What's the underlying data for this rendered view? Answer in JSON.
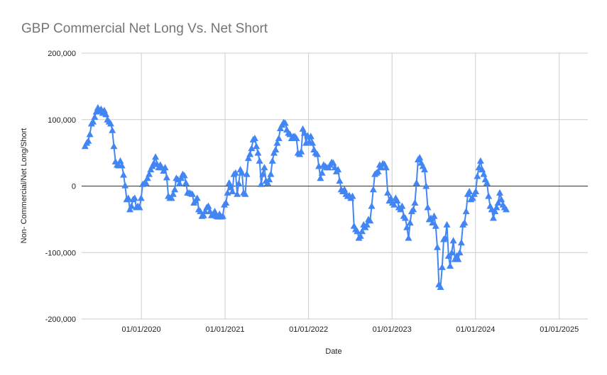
{
  "chart_data": {
    "type": "line",
    "title": "GBP Commercial Net Long Vs. Net Short",
    "xlabel": "Date",
    "ylabel": "Non- Commercial/Net Long/Short",
    "y_ticks": [
      "200,000",
      "100,000",
      "0",
      "-100,000",
      "-200,000"
    ],
    "x_ticks": [
      "01/01/2020",
      "01/01/2021",
      "01/01/2022",
      "01/01/2023",
      "01/01/2024",
      "01/01/2025"
    ],
    "xlim": [
      "2019-04-15",
      "2025-05-06"
    ],
    "ylim": [
      -200000,
      200000
    ],
    "grid": true,
    "marker": "triangle",
    "color": "#4285f4",
    "series": [
      {
        "points": [
          [
            "2019-04-30",
            60000
          ],
          [
            "2019-05-07",
            65000
          ],
          [
            "2019-05-14",
            68000
          ],
          [
            "2019-05-21",
            78000
          ],
          [
            "2019-05-28",
            94000
          ],
          [
            "2019-06-04",
            97000
          ],
          [
            "2019-06-11",
            104000
          ],
          [
            "2019-06-18",
            112000
          ],
          [
            "2019-06-25",
            118000
          ],
          [
            "2019-07-02",
            113000
          ],
          [
            "2019-07-09",
            116000
          ],
          [
            "2019-07-16",
            110000
          ],
          [
            "2019-07-23",
            114000
          ],
          [
            "2019-07-30",
            108000
          ],
          [
            "2019-08-06",
            100000
          ],
          [
            "2019-08-13",
            97000
          ],
          [
            "2019-08-20",
            94000
          ],
          [
            "2019-08-27",
            84000
          ],
          [
            "2019-09-03",
            60000
          ],
          [
            "2019-09-10",
            37000
          ],
          [
            "2019-09-17",
            32000
          ],
          [
            "2019-09-24",
            31000
          ],
          [
            "2019-10-01",
            38000
          ],
          [
            "2019-10-08",
            31000
          ],
          [
            "2019-10-15",
            17000
          ],
          [
            "2019-10-22",
            1000
          ],
          [
            "2019-10-29",
            -20000
          ],
          [
            "2019-11-05",
            -18000
          ],
          [
            "2019-11-12",
            -35000
          ],
          [
            "2019-11-19",
            -30000
          ],
          [
            "2019-11-26",
            -20000
          ],
          [
            "2019-12-03",
            -18000
          ],
          [
            "2019-12-10",
            -32000
          ],
          [
            "2019-12-17",
            -30000
          ],
          [
            "2019-12-24",
            -32000
          ],
          [
            "2019-12-31",
            -18000
          ],
          [
            "2020-01-07",
            3000
          ],
          [
            "2020-01-14",
            4000
          ],
          [
            "2020-01-21",
            5000
          ],
          [
            "2020-01-28",
            12000
          ],
          [
            "2020-02-04",
            18000
          ],
          [
            "2020-02-11",
            25000
          ],
          [
            "2020-02-18",
            30000
          ],
          [
            "2020-02-25",
            35000
          ],
          [
            "2020-03-03",
            44000
          ],
          [
            "2020-03-10",
            33000
          ],
          [
            "2020-03-17",
            28000
          ],
          [
            "2020-03-24",
            32000
          ],
          [
            "2020-03-31",
            28000
          ],
          [
            "2020-04-07",
            23000
          ],
          [
            "2020-04-14",
            28000
          ],
          [
            "2020-04-21",
            13000
          ],
          [
            "2020-04-28",
            -15000
          ],
          [
            "2020-05-05",
            -18000
          ],
          [
            "2020-05-12",
            -18000
          ],
          [
            "2020-05-19",
            -12000
          ],
          [
            "2020-05-26",
            -5000
          ],
          [
            "2020-06-02",
            12000
          ],
          [
            "2020-06-09",
            10000
          ],
          [
            "2020-06-16",
            4000
          ],
          [
            "2020-06-23",
            12000
          ],
          [
            "2020-06-30",
            18000
          ],
          [
            "2020-07-07",
            16000
          ],
          [
            "2020-07-14",
            5000
          ],
          [
            "2020-07-21",
            -10000
          ],
          [
            "2020-07-28",
            -10000
          ],
          [
            "2020-08-04",
            -11000
          ],
          [
            "2020-08-11",
            -12000
          ],
          [
            "2020-08-18",
            -25000
          ],
          [
            "2020-08-25",
            -22000
          ],
          [
            "2020-09-01",
            -18000
          ],
          [
            "2020-09-08",
            -35000
          ],
          [
            "2020-09-15",
            -38000
          ],
          [
            "2020-09-22",
            -45000
          ],
          [
            "2020-09-29",
            -44000
          ],
          [
            "2020-10-06",
            -38000
          ],
          [
            "2020-10-13",
            -32000
          ],
          [
            "2020-10-20",
            -30000
          ],
          [
            "2020-10-27",
            -38000
          ],
          [
            "2020-11-03",
            -44000
          ],
          [
            "2020-11-10",
            -42000
          ],
          [
            "2020-11-17",
            -38000
          ],
          [
            "2020-11-24",
            -45000
          ],
          [
            "2020-12-01",
            -46000
          ],
          [
            "2020-12-08",
            -42000
          ],
          [
            "2020-12-15",
            -46000
          ],
          [
            "2020-12-22",
            -45000
          ],
          [
            "2020-12-29",
            -28000
          ],
          [
            "2021-01-05",
            -25000
          ],
          [
            "2021-01-12",
            -10000
          ],
          [
            "2021-01-19",
            5000
          ],
          [
            "2021-01-26",
            -2000
          ],
          [
            "2021-02-02",
            -8000
          ],
          [
            "2021-02-09",
            18000
          ],
          [
            "2021-02-16",
            20000
          ],
          [
            "2021-02-23",
            -12000
          ],
          [
            "2021-03-02",
            4000
          ],
          [
            "2021-03-09",
            25000
          ],
          [
            "2021-03-16",
            20000
          ],
          [
            "2021-03-23",
            -10000
          ],
          [
            "2021-03-30",
            -12000
          ],
          [
            "2021-04-06",
            18000
          ],
          [
            "2021-04-13",
            42000
          ],
          [
            "2021-04-20",
            48000
          ],
          [
            "2021-04-27",
            57000
          ],
          [
            "2021-05-04",
            70000
          ],
          [
            "2021-05-11",
            72000
          ],
          [
            "2021-05-18",
            60000
          ],
          [
            "2021-05-25",
            50000
          ],
          [
            "2021-06-01",
            38000
          ],
          [
            "2021-06-08",
            3000
          ],
          [
            "2021-06-15",
            18000
          ],
          [
            "2021-06-22",
            28000
          ],
          [
            "2021-06-29",
            8000
          ],
          [
            "2021-07-06",
            5000
          ],
          [
            "2021-07-13",
            10000
          ],
          [
            "2021-07-20",
            18000
          ],
          [
            "2021-07-27",
            38000
          ],
          [
            "2021-08-03",
            50000
          ],
          [
            "2021-08-10",
            55000
          ],
          [
            "2021-08-17",
            65000
          ],
          [
            "2021-08-24",
            72000
          ],
          [
            "2021-08-31",
            87000
          ],
          [
            "2021-09-07",
            92000
          ],
          [
            "2021-09-14",
            96000
          ],
          [
            "2021-09-21",
            95000
          ],
          [
            "2021-09-28",
            85000
          ],
          [
            "2021-10-05",
            80000
          ],
          [
            "2021-10-12",
            78000
          ],
          [
            "2021-10-19",
            72000
          ],
          [
            "2021-10-26",
            75000
          ],
          [
            "2021-11-02",
            75000
          ],
          [
            "2021-11-09",
            72000
          ],
          [
            "2021-11-16",
            50000
          ],
          [
            "2021-11-23",
            48000
          ],
          [
            "2021-11-30",
            52000
          ],
          [
            "2021-12-07",
            86000
          ],
          [
            "2021-12-14",
            80000
          ],
          [
            "2021-12-21",
            65000
          ],
          [
            "2021-12-28",
            76000
          ],
          [
            "2022-01-04",
            67000
          ],
          [
            "2022-01-11",
            75000
          ],
          [
            "2022-01-18",
            65000
          ],
          [
            "2022-01-25",
            55000
          ],
          [
            "2022-02-01",
            50000
          ],
          [
            "2022-02-08",
            48000
          ],
          [
            "2022-02-15",
            30000
          ],
          [
            "2022-02-22",
            12000
          ],
          [
            "2022-03-01",
            20000
          ],
          [
            "2022-03-08",
            32000
          ],
          [
            "2022-03-15",
            30000
          ],
          [
            "2022-03-22",
            28000
          ],
          [
            "2022-03-29",
            28000
          ],
          [
            "2022-04-05",
            32000
          ],
          [
            "2022-04-12",
            36000
          ],
          [
            "2022-04-19",
            35000
          ],
          [
            "2022-04-26",
            28000
          ],
          [
            "2022-05-03",
            22000
          ],
          [
            "2022-05-10",
            25000
          ],
          [
            "2022-05-17",
            8000
          ],
          [
            "2022-05-24",
            -5000
          ],
          [
            "2022-05-31",
            -8000
          ],
          [
            "2022-06-07",
            -5000
          ],
          [
            "2022-06-14",
            -12000
          ],
          [
            "2022-06-21",
            -15000
          ],
          [
            "2022-06-28",
            -14000
          ],
          [
            "2022-07-05",
            -18000
          ],
          [
            "2022-07-12",
            -15000
          ],
          [
            "2022-07-19",
            -60000
          ],
          [
            "2022-07-26",
            -65000
          ],
          [
            "2022-08-02",
            -68000
          ],
          [
            "2022-08-09",
            -78000
          ],
          [
            "2022-08-16",
            -75000
          ],
          [
            "2022-08-23",
            -68000
          ],
          [
            "2022-08-30",
            -58000
          ],
          [
            "2022-09-06",
            -62000
          ],
          [
            "2022-09-13",
            -58000
          ],
          [
            "2022-09-20",
            -50000
          ],
          [
            "2022-09-27",
            -52000
          ],
          [
            "2022-10-04",
            -30000
          ],
          [
            "2022-10-11",
            -5000
          ],
          [
            "2022-10-18",
            18000
          ],
          [
            "2022-10-25",
            20000
          ],
          [
            "2022-11-01",
            22000
          ],
          [
            "2022-11-08",
            32000
          ],
          [
            "2022-11-15",
            28000
          ],
          [
            "2022-11-22",
            34000
          ],
          [
            "2022-11-29",
            33000
          ],
          [
            "2022-12-06",
            28000
          ],
          [
            "2022-12-13",
            -10000
          ],
          [
            "2022-12-20",
            -22000
          ],
          [
            "2022-12-27",
            -18000
          ],
          [
            "2023-01-03",
            -25000
          ],
          [
            "2023-01-10",
            -28000
          ],
          [
            "2023-01-17",
            -18000
          ],
          [
            "2023-01-24",
            -22000
          ],
          [
            "2023-01-31",
            -32000
          ],
          [
            "2023-02-07",
            -35000
          ],
          [
            "2023-02-14",
            -30000
          ],
          [
            "2023-02-21",
            -45000
          ],
          [
            "2023-02-28",
            -48000
          ],
          [
            "2023-03-07",
            -62000
          ],
          [
            "2023-03-14",
            -78000
          ],
          [
            "2023-03-21",
            -55000
          ],
          [
            "2023-03-28",
            -38000
          ],
          [
            "2023-04-04",
            -35000
          ],
          [
            "2023-04-11",
            -25000
          ],
          [
            "2023-04-18",
            5000
          ],
          [
            "2023-04-25",
            40000
          ],
          [
            "2023-05-02",
            43000
          ],
          [
            "2023-05-09",
            35000
          ],
          [
            "2023-05-16",
            30000
          ],
          [
            "2023-05-23",
            25000
          ],
          [
            "2023-05-30",
            0
          ],
          [
            "2023-06-06",
            -32000
          ],
          [
            "2023-06-13",
            -50000
          ],
          [
            "2023-06-20",
            -48000
          ],
          [
            "2023-06-27",
            -55000
          ],
          [
            "2023-07-04",
            -45000
          ],
          [
            "2023-07-11",
            -60000
          ],
          [
            "2023-07-18",
            -92000
          ],
          [
            "2023-07-25",
            -148000
          ],
          [
            "2023-08-01",
            -152000
          ],
          [
            "2023-08-08",
            -122000
          ],
          [
            "2023-08-15",
            -80000
          ],
          [
            "2023-08-22",
            -78000
          ],
          [
            "2023-08-29",
            -58000
          ],
          [
            "2023-09-05",
            -105000
          ],
          [
            "2023-09-12",
            -120000
          ],
          [
            "2023-09-19",
            -100000
          ],
          [
            "2023-09-26",
            -82000
          ],
          [
            "2023-10-03",
            -110000
          ],
          [
            "2023-10-10",
            -105000
          ],
          [
            "2023-10-17",
            -110000
          ],
          [
            "2023-10-24",
            -100000
          ],
          [
            "2023-10-31",
            -85000
          ],
          [
            "2023-11-07",
            -58000
          ],
          [
            "2023-11-14",
            -55000
          ],
          [
            "2023-11-21",
            -38000
          ],
          [
            "2023-11-28",
            -12000
          ],
          [
            "2023-12-05",
            -8000
          ],
          [
            "2023-12-12",
            -20000
          ],
          [
            "2023-12-19",
            -18000
          ],
          [
            "2023-12-26",
            -12000
          ],
          [
            "2024-01-02",
            -8000
          ],
          [
            "2024-01-09",
            15000
          ],
          [
            "2024-01-16",
            28000
          ],
          [
            "2024-01-23",
            38000
          ],
          [
            "2024-01-30",
            25000
          ],
          [
            "2024-02-06",
            18000
          ],
          [
            "2024-02-13",
            10000
          ],
          [
            "2024-02-20",
            5000
          ],
          [
            "2024-02-27",
            -15000
          ],
          [
            "2024-03-05",
            -30000
          ],
          [
            "2024-03-12",
            -35000
          ],
          [
            "2024-03-19",
            -48000
          ],
          [
            "2024-03-26",
            -38000
          ],
          [
            "2024-04-02",
            -32000
          ],
          [
            "2024-04-09",
            -25000
          ],
          [
            "2024-04-16",
            -10000
          ],
          [
            "2024-04-23",
            -20000
          ],
          [
            "2024-04-30",
            -28000
          ],
          [
            "2024-05-07",
            -32000
          ],
          [
            "2024-05-14",
            -35000
          ]
        ]
      }
    ]
  }
}
